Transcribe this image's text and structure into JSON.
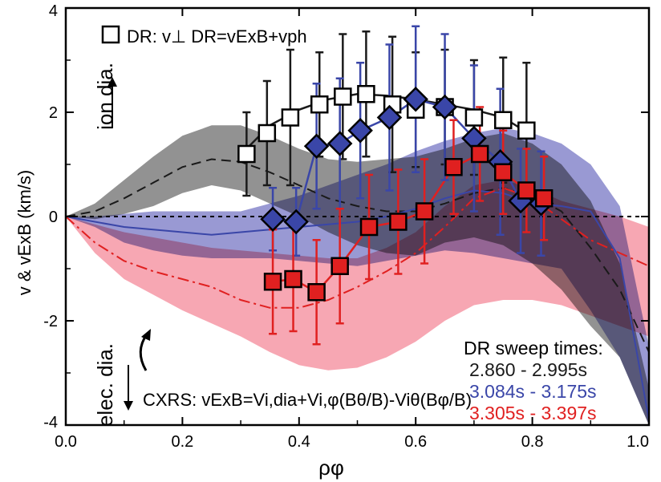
{
  "chart_data": {
    "type": "line",
    "xlabel": "ρφ",
    "ylabel": "v & vExB (km/s)",
    "xlim": [
      0.0,
      1.0
    ],
    "ylim": [
      -4,
      4
    ],
    "x_ticks": [
      "0.0",
      "0.2",
      "0.4",
      "0.6",
      "0.8",
      "1.0"
    ],
    "y_ticks": [
      "-4",
      "-2",
      "0",
      "2",
      "4"
    ],
    "grid": false,
    "annotations": {
      "dr_formula": "DR: v⊥ DR=vExB+vph",
      "ion_label": "ion dia.",
      "elec_label": "elec. dia.",
      "cxrs_formula": "CXRS: vExB=Vi,dia+Vi,φ(Bθ/B)-Viθ(Bφ/B)",
      "legend_title": "DR sweep times:"
    },
    "colors": {
      "black": "#1a1a1a",
      "blue": "#3a46a8",
      "red": "#e02020",
      "gray": "#7f7f7f",
      "blueband": "#7f80c8",
      "redband": "#f48a9a",
      "purpleband": "#8a2a8f"
    },
    "series": [
      {
        "name": "2.860 - 2.995s",
        "color": "#1a1a1a",
        "marker": "open-square",
        "points": [
          {
            "x": 0.31,
            "y": 1.2,
            "err": 0.8
          },
          {
            "x": 0.345,
            "y": 1.6,
            "err": 1.0
          },
          {
            "x": 0.385,
            "y": 1.9,
            "err": 1.3
          },
          {
            "x": 0.435,
            "y": 2.15,
            "err": 1.0
          },
          {
            "x": 0.475,
            "y": 2.3,
            "err": 1.2
          },
          {
            "x": 0.515,
            "y": 2.35,
            "err": 1.2
          },
          {
            "x": 0.56,
            "y": 2.15,
            "err": 1.3
          },
          {
            "x": 0.6,
            "y": 2.05,
            "err": 1.1
          },
          {
            "x": 0.65,
            "y": 2.1,
            "err": 1.1
          },
          {
            "x": 0.7,
            "y": 1.9,
            "err": 1.1
          },
          {
            "x": 0.75,
            "y": 1.85,
            "err": 1.2
          },
          {
            "x": 0.79,
            "y": 1.65,
            "err": 1.3
          }
        ],
        "fit": [
          [
            0.31,
            1.3
          ],
          [
            0.35,
            1.75
          ],
          [
            0.4,
            2.05
          ],
          [
            0.45,
            2.25
          ],
          [
            0.5,
            2.35
          ],
          [
            0.55,
            2.32
          ],
          [
            0.6,
            2.25
          ],
          [
            0.65,
            2.15
          ],
          [
            0.7,
            2.05
          ],
          [
            0.75,
            1.9
          ],
          [
            0.8,
            1.55
          ]
        ]
      },
      {
        "name": "3.084s - 3.175s",
        "color": "#3a46a8",
        "marker": "filled-diamond",
        "points": [
          {
            "x": 0.355,
            "y": -0.05,
            "err": 0.6
          },
          {
            "x": 0.395,
            "y": -0.1,
            "err": 0.65
          },
          {
            "x": 0.43,
            "y": 1.35,
            "err": 1.2
          },
          {
            "x": 0.47,
            "y": 1.4,
            "err": 1.25
          },
          {
            "x": 0.505,
            "y": 1.65,
            "err": 1.3
          },
          {
            "x": 0.555,
            "y": 1.9,
            "err": 1.4
          },
          {
            "x": 0.6,
            "y": 2.25,
            "err": 1.4
          },
          {
            "x": 0.65,
            "y": 2.1,
            "err": 1.4
          },
          {
            "x": 0.7,
            "y": 1.5,
            "err": 1.4
          },
          {
            "x": 0.745,
            "y": 1.05,
            "err": 1.4
          },
          {
            "x": 0.78,
            "y": 0.3,
            "err": 1.0
          },
          {
            "x": 0.815,
            "y": 0.25,
            "err": 1.0
          }
        ]
      },
      {
        "name": "3.305s - 3.397s",
        "color": "#e02020",
        "marker": "filled-square",
        "points": [
          {
            "x": 0.355,
            "y": -1.25,
            "err": 1.0
          },
          {
            "x": 0.39,
            "y": -1.2,
            "err": 1.0
          },
          {
            "x": 0.43,
            "y": -1.45,
            "err": 1.0
          },
          {
            "x": 0.47,
            "y": -0.95,
            "err": 1.1
          },
          {
            "x": 0.52,
            "y": -0.2,
            "err": 1.0
          },
          {
            "x": 0.57,
            "y": -0.1,
            "err": 1.0
          },
          {
            "x": 0.615,
            "y": 0.1,
            "err": 1.0
          },
          {
            "x": 0.665,
            "y": 0.95,
            "err": 0.9
          },
          {
            "x": 0.71,
            "y": 1.2,
            "err": 0.9
          },
          {
            "x": 0.75,
            "y": 0.85,
            "err": 0.8
          },
          {
            "x": 0.79,
            "y": 0.5,
            "err": 0.8
          },
          {
            "x": 0.82,
            "y": 0.35,
            "err": 0.8
          }
        ]
      }
    ],
    "cxrs_profiles": [
      {
        "color": "#1a1a1a",
        "dash": "12,7",
        "center": [
          [
            0,
            0
          ],
          [
            0.05,
            0.1
          ],
          [
            0.1,
            0.35
          ],
          [
            0.15,
            0.65
          ],
          [
            0.2,
            0.95
          ],
          [
            0.25,
            1.1
          ],
          [
            0.3,
            1.05
          ],
          [
            0.35,
            0.85
          ],
          [
            0.4,
            0.6
          ],
          [
            0.45,
            0.35
          ],
          [
            0.5,
            0.2
          ],
          [
            0.55,
            0.1
          ],
          [
            0.6,
            0.1
          ],
          [
            0.65,
            0.25
          ],
          [
            0.7,
            0.45
          ],
          [
            0.75,
            0.55
          ],
          [
            0.8,
            0.4
          ],
          [
            0.85,
            0.1
          ],
          [
            0.9,
            -0.6
          ],
          [
            0.95,
            -1.4
          ],
          [
            1.0,
            -2.6
          ]
        ],
        "band_upper": [
          [
            0,
            0
          ],
          [
            0.05,
            0.25
          ],
          [
            0.1,
            0.7
          ],
          [
            0.15,
            1.15
          ],
          [
            0.2,
            1.55
          ],
          [
            0.25,
            1.75
          ],
          [
            0.3,
            1.75
          ],
          [
            0.35,
            1.55
          ],
          [
            0.4,
            1.3
          ],
          [
            0.45,
            1.1
          ],
          [
            0.5,
            1.05
          ],
          [
            0.55,
            1.1
          ],
          [
            0.6,
            1.15
          ],
          [
            0.65,
            1.3
          ],
          [
            0.7,
            1.5
          ],
          [
            0.75,
            1.6
          ],
          [
            0.8,
            1.4
          ],
          [
            0.85,
            1.0
          ],
          [
            0.9,
            0.3
          ],
          [
            0.95,
            -0.9
          ],
          [
            1.0,
            -3.3
          ]
        ],
        "band_lower": [
          [
            0,
            0
          ],
          [
            0.05,
            -0.05
          ],
          [
            0.1,
            0.05
          ],
          [
            0.15,
            0.2
          ],
          [
            0.2,
            0.45
          ],
          [
            0.25,
            0.6
          ],
          [
            0.3,
            0.5
          ],
          [
            0.35,
            0.25
          ],
          [
            0.4,
            0.0
          ],
          [
            0.45,
            -0.3
          ],
          [
            0.5,
            -0.55
          ],
          [
            0.55,
            -0.7
          ],
          [
            0.6,
            -0.75
          ],
          [
            0.65,
            -0.5
          ],
          [
            0.7,
            -0.4
          ],
          [
            0.75,
            -0.55
          ],
          [
            0.8,
            -0.9
          ],
          [
            0.85,
            -1.4
          ],
          [
            0.9,
            -2.1
          ],
          [
            0.95,
            -2.7
          ],
          [
            1.0,
            -4.0
          ]
        ]
      },
      {
        "color": "#3a46a8",
        "dash": "",
        "center": [
          [
            0,
            0
          ],
          [
            0.05,
            -0.1
          ],
          [
            0.1,
            -0.2
          ],
          [
            0.15,
            -0.25
          ],
          [
            0.2,
            -0.3
          ],
          [
            0.25,
            -0.35
          ],
          [
            0.3,
            -0.3
          ],
          [
            0.35,
            -0.25
          ],
          [
            0.4,
            -0.2
          ],
          [
            0.45,
            -0.15
          ],
          [
            0.5,
            -0.1
          ],
          [
            0.55,
            0.0
          ],
          [
            0.6,
            0.15
          ],
          [
            0.65,
            0.35
          ],
          [
            0.7,
            0.5
          ],
          [
            0.75,
            0.45
          ],
          [
            0.8,
            0.25
          ],
          [
            0.85,
            0.2
          ],
          [
            0.9,
            0.1
          ],
          [
            0.95,
            -0.8
          ],
          [
            1.0,
            -3.9
          ]
        ],
        "band_upper": [
          [
            0,
            0
          ],
          [
            0.05,
            0.0
          ],
          [
            0.1,
            0.05
          ],
          [
            0.15,
            0.1
          ],
          [
            0.2,
            0.1
          ],
          [
            0.25,
            0.1
          ],
          [
            0.3,
            0.1
          ],
          [
            0.35,
            0.25
          ],
          [
            0.4,
            0.4
          ],
          [
            0.45,
            0.6
          ],
          [
            0.5,
            0.8
          ],
          [
            0.55,
            1.0
          ],
          [
            0.6,
            1.25
          ],
          [
            0.65,
            1.45
          ],
          [
            0.7,
            1.6
          ],
          [
            0.75,
            1.7
          ],
          [
            0.8,
            1.6
          ],
          [
            0.85,
            1.4
          ],
          [
            0.9,
            1.0
          ],
          [
            0.95,
            0.2
          ],
          [
            1.0,
            -2.5
          ]
        ],
        "band_lower": [
          [
            0,
            0
          ],
          [
            0.05,
            -0.2
          ],
          [
            0.1,
            -0.5
          ],
          [
            0.15,
            -0.65
          ],
          [
            0.2,
            -0.75
          ],
          [
            0.25,
            -0.8
          ],
          [
            0.3,
            -0.8
          ],
          [
            0.35,
            -0.8
          ],
          [
            0.4,
            -0.85
          ],
          [
            0.45,
            -0.9
          ],
          [
            0.5,
            -0.95
          ],
          [
            0.55,
            -0.85
          ],
          [
            0.6,
            -0.75
          ],
          [
            0.65,
            -0.65
          ],
          [
            0.7,
            -0.7
          ],
          [
            0.75,
            -0.8
          ],
          [
            0.8,
            -0.9
          ],
          [
            0.85,
            -1.0
          ],
          [
            0.9,
            -1.8
          ],
          [
            0.95,
            -2.7
          ],
          [
            1.0,
            -4.0
          ]
        ]
      },
      {
        "color": "#e02020",
        "dash": "14,5,3,5",
        "center": [
          [
            0,
            0
          ],
          [
            0.05,
            -0.5
          ],
          [
            0.1,
            -0.85
          ],
          [
            0.15,
            -1.05
          ],
          [
            0.2,
            -1.2
          ],
          [
            0.25,
            -1.35
          ],
          [
            0.3,
            -1.6
          ],
          [
            0.35,
            -1.75
          ],
          [
            0.4,
            -1.75
          ],
          [
            0.45,
            -1.6
          ],
          [
            0.5,
            -1.35
          ],
          [
            0.55,
            -1.05
          ],
          [
            0.6,
            -0.7
          ],
          [
            0.65,
            -0.2
          ],
          [
            0.7,
            0.35
          ],
          [
            0.75,
            0.55
          ],
          [
            0.8,
            0.35
          ],
          [
            0.85,
            -0.05
          ],
          [
            0.9,
            -0.45
          ],
          [
            0.95,
            -0.7
          ],
          [
            1.0,
            -0.95
          ]
        ],
        "band_upper": [
          [
            0,
            0
          ],
          [
            0.05,
            -0.15
          ],
          [
            0.1,
            -0.3
          ],
          [
            0.15,
            -0.4
          ],
          [
            0.2,
            -0.5
          ],
          [
            0.25,
            -0.6
          ],
          [
            0.3,
            -0.65
          ],
          [
            0.35,
            -0.7
          ],
          [
            0.4,
            -0.75
          ],
          [
            0.45,
            -0.8
          ],
          [
            0.5,
            -0.8
          ],
          [
            0.55,
            -0.6
          ],
          [
            0.6,
            -0.3
          ],
          [
            0.65,
            0.2
          ],
          [
            0.7,
            0.6
          ],
          [
            0.75,
            0.7
          ],
          [
            0.8,
            0.55
          ],
          [
            0.85,
            0.3
          ],
          [
            0.9,
            0.15
          ],
          [
            0.95,
            0.0
          ],
          [
            1.0,
            -0.2
          ]
        ],
        "band_lower": [
          [
            0,
            0
          ],
          [
            0.05,
            -0.7
          ],
          [
            0.1,
            -1.2
          ],
          [
            0.15,
            -1.5
          ],
          [
            0.2,
            -1.8
          ],
          [
            0.25,
            -2.05
          ],
          [
            0.3,
            -2.3
          ],
          [
            0.35,
            -2.6
          ],
          [
            0.4,
            -2.85
          ],
          [
            0.45,
            -2.95
          ],
          [
            0.5,
            -2.9
          ],
          [
            0.55,
            -2.7
          ],
          [
            0.6,
            -2.4
          ],
          [
            0.65,
            -2.0
          ],
          [
            0.7,
            -1.7
          ],
          [
            0.75,
            -1.6
          ],
          [
            0.8,
            -1.6
          ],
          [
            0.85,
            -1.7
          ],
          [
            0.9,
            -1.9
          ],
          [
            0.95,
            -2.1
          ],
          [
            1.0,
            -2.3
          ]
        ]
      }
    ]
  }
}
